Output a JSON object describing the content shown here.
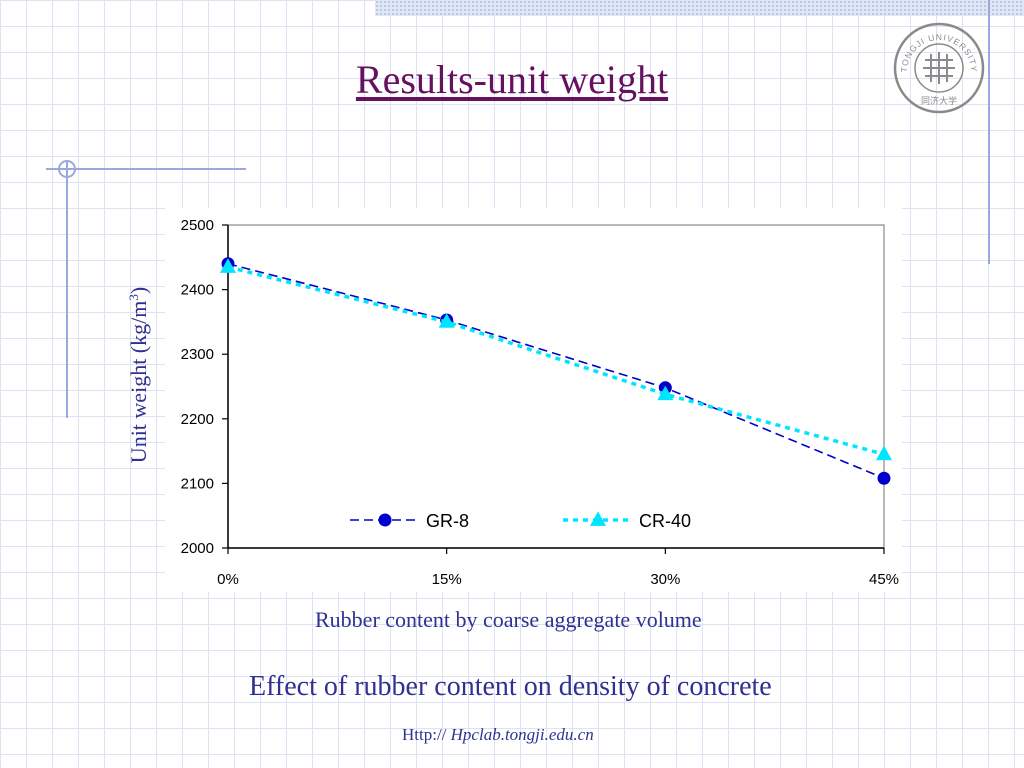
{
  "slide": {
    "title": "Results-unit weight",
    "caption": "Effect of rubber content on density of concrete",
    "footer_prefix": "Http:// ",
    "footer_domain": "Hpclab.tongji.edu.cn"
  },
  "logo": {
    "text": "TONGJI UNIVERSITY",
    "chinese_text": "同济大学",
    "color": "#8a8a8a"
  },
  "colors": {
    "title": "#66115f",
    "text": "#2e3192",
    "decoration": "#9aa9dd",
    "grid": "#dde3f2"
  },
  "chart_data": {
    "type": "line",
    "title": "",
    "xlabel": "Rubber content by coarse aggregate volume",
    "ylabel": "Unit weight (kg/m",
    "ylabel_sup": "3",
    "ylabel_close": ")",
    "categories": [
      "0%",
      "15%",
      "30%",
      "45%"
    ],
    "ylim": [
      2000,
      2500
    ],
    "yticks": [
      "2000",
      "2100",
      "2200",
      "2300",
      "2400",
      "2500"
    ],
    "grid": false,
    "legend_position": "inside-bottom",
    "series": [
      {
        "name": "GR-8",
        "values": [
          2440,
          2353,
          2248,
          2108
        ],
        "color": "#0000cc",
        "marker": "circle",
        "line_style": "dashed"
      },
      {
        "name": "CR-40",
        "values": [
          2435,
          2350,
          2238,
          2145
        ],
        "color": "#00e5ff",
        "marker": "triangle",
        "line_style": "dotted"
      }
    ]
  }
}
